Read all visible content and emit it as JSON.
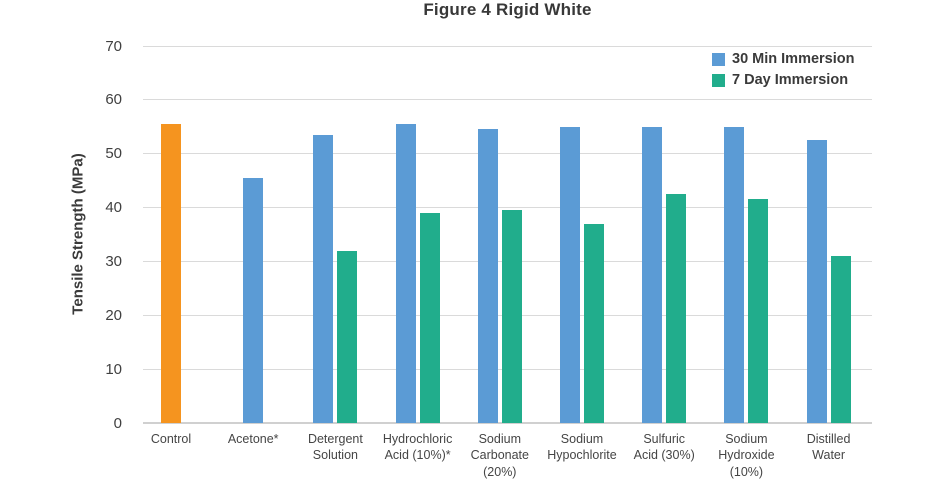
{
  "title": "Figure 4 Rigid White",
  "colors": {
    "control_bar": "#F5941F",
    "series_30min": "#5B9BD5",
    "series_7day": "#21AD8C",
    "gridline": "#DADADA",
    "text": "#3C3C3C"
  },
  "legend": {
    "items": [
      {
        "label": "30 Min Immersion",
        "color": "#5B9BD5"
      },
      {
        "label": "7 Day Immersion",
        "color": "#21AD8C"
      }
    ]
  },
  "chart_data": {
    "type": "bar",
    "title": "Figure 4 Rigid White",
    "xlabel": "",
    "ylabel": "Tensile Strength (MPa)",
    "ylim": [
      0,
      70
    ],
    "yticks": [
      0,
      10,
      20,
      30,
      40,
      50,
      60,
      70
    ],
    "grid": true,
    "legend_position": "top-right",
    "categories": [
      [
        "Control"
      ],
      [
        "Acetone*"
      ],
      [
        "Detergent",
        "Solution"
      ],
      [
        "Hydrochloric",
        "Acid (10%)*"
      ],
      [
        "Sodium",
        "Carbonate",
        "(20%)"
      ],
      [
        "Sodium",
        "Hypochlorite"
      ],
      [
        "Sulfuric",
        "Acid (30%)"
      ],
      [
        "Sodium",
        "Hydroxide",
        "(10%)"
      ],
      [
        "Distilled",
        "Water"
      ]
    ],
    "series": [
      {
        "name": "30 Min Immersion",
        "color": "#5B9BD5",
        "values": [
          55.5,
          45.5,
          53.5,
          55.5,
          54.5,
          55,
          55,
          55,
          52.5
        ]
      },
      {
        "name": "7 Day Immersion",
        "color": "#21AD8C",
        "values": [
          null,
          null,
          32,
          39,
          39.5,
          37,
          42.5,
          41.5,
          31
        ]
      }
    ],
    "control_bar": {
      "category": "Control",
      "color": "#F5941F"
    }
  }
}
